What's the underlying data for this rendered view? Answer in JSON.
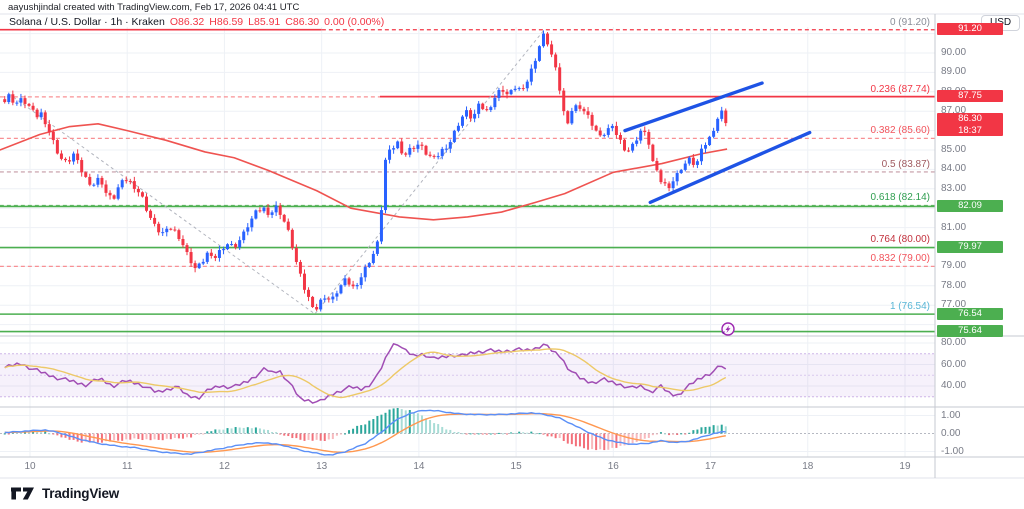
{
  "attribution": "aayushjindal created with TradingView.com, Feb 17, 2026 04:41 UTC",
  "legend": {
    "title": "Solana / U.S. Dollar · 1h · Kraken",
    "open": "O86.32",
    "high": "H86.59",
    "low": "L85.91",
    "close": "C86.30",
    "change": "0.00 (0.00%)"
  },
  "currency_button": "USD",
  "logo_text": "TradingView",
  "axes": {
    "price_ticks": [
      90,
      89,
      88,
      87,
      86,
      85,
      84,
      83,
      82,
      81,
      80,
      79,
      78,
      77
    ],
    "time_ticks": [
      10,
      11,
      12,
      13,
      14,
      15,
      16,
      17,
      18,
      19
    ],
    "rsi_ticks": [
      80,
      60,
      40
    ],
    "macd_ticks": [
      1,
      0,
      -1
    ]
  },
  "badges": [
    {
      "text": "91.20",
      "price": 91.2,
      "bg": "#f23645"
    },
    {
      "text": "87.75",
      "price": 87.75,
      "bg": "#f23645"
    },
    {
      "text": "86.30",
      "sub": "18:37",
      "price": 86.3,
      "bg": "#f23645"
    },
    {
      "text": "82.09",
      "price": 82.09,
      "bg": "#4caf50"
    },
    {
      "text": "79.97",
      "price": 79.97,
      "bg": "#4caf50"
    },
    {
      "text": "76.54",
      "price": 76.54,
      "bg": "#4caf50"
    },
    {
      "text": "75.64",
      "price": 75.64,
      "bg": "#4caf50"
    }
  ],
  "fib_labels": [
    {
      "text": "0 (91.20)",
      "price": 91.2,
      "color": "#8a8e98"
    },
    {
      "text": "0.236 (87.74)",
      "price": 87.74,
      "color": "#f23645"
    },
    {
      "text": "0.382 (85.60)",
      "price": 85.6,
      "color": "#f2545c"
    },
    {
      "text": "0.5 (83.87)",
      "price": 83.87,
      "color": "#a05a60"
    },
    {
      "text": "0.618 (82.14)",
      "price": 82.14,
      "color": "#2f9e4f"
    },
    {
      "text": "0.764 (80.00)",
      "price": 80.0,
      "color": "#c22f3b"
    },
    {
      "text": "0.832 (79.00)",
      "price": 79.0,
      "color": "#f2545c"
    },
    {
      "text": "1 (76.54)",
      "price": 76.54,
      "color": "#58b6d6"
    }
  ],
  "chart_data": {
    "type": "candlestick",
    "title": "Solana / U.S. Dollar 1h (Kraken)",
    "x_range_days": [
      9.74,
      17.17
    ],
    "y_range_price": [
      75.5,
      91.3
    ],
    "candle_colors": {
      "up": "#2962ff",
      "down": "#f23645"
    },
    "price_keypoints": [
      [
        9.74,
        87.5
      ],
      [
        9.78,
        87.8
      ],
      [
        9.85,
        87.4
      ],
      [
        9.92,
        87.6
      ],
      [
        10.0,
        87.2
      ],
      [
        10.06,
        86.7
      ],
      [
        10.12,
        86.9
      ],
      [
        10.18,
        86.2
      ],
      [
        10.25,
        85.3
      ],
      [
        10.31,
        84.6
      ],
      [
        10.38,
        84.3
      ],
      [
        10.45,
        84.8
      ],
      [
        10.52,
        84.0
      ],
      [
        10.58,
        83.5
      ],
      [
        10.65,
        83.2
      ],
      [
        10.72,
        83.6
      ],
      [
        10.78,
        82.8
      ],
      [
        10.85,
        82.4
      ],
      [
        10.92,
        83.2
      ],
      [
        11.0,
        83.5
      ],
      [
        11.08,
        83.1
      ],
      [
        11.15,
        82.6
      ],
      [
        11.22,
        81.7
      ],
      [
        11.3,
        80.9
      ],
      [
        11.38,
        80.7
      ],
      [
        11.46,
        81.0
      ],
      [
        11.54,
        80.5
      ],
      [
        11.62,
        79.6
      ],
      [
        11.7,
        78.9
      ],
      [
        11.76,
        79.1
      ],
      [
        11.82,
        79.7
      ],
      [
        11.88,
        79.3
      ],
      [
        11.95,
        79.8
      ],
      [
        12.02,
        80.2
      ],
      [
        12.1,
        80.0
      ],
      [
        12.18,
        80.5
      ],
      [
        12.25,
        81.2
      ],
      [
        12.33,
        81.8
      ],
      [
        12.4,
        82.0
      ],
      [
        12.47,
        81.7
      ],
      [
        12.54,
        82.1
      ],
      [
        12.6,
        81.5
      ],
      [
        12.67,
        80.6
      ],
      [
        12.74,
        79.2
      ],
      [
        12.81,
        78.0
      ],
      [
        12.88,
        77.2
      ],
      [
        12.95,
        76.8
      ],
      [
        13.02,
        77.5
      ],
      [
        13.1,
        77.2
      ],
      [
        13.18,
        77.9
      ],
      [
        13.25,
        78.3
      ],
      [
        13.32,
        77.9
      ],
      [
        13.4,
        78.4
      ],
      [
        13.48,
        79.2
      ],
      [
        13.55,
        79.8
      ],
      [
        13.6,
        80.6
      ],
      [
        13.64,
        84.3
      ],
      [
        13.7,
        84.9
      ],
      [
        13.78,
        85.4
      ],
      [
        13.85,
        84.7
      ],
      [
        13.92,
        85.1
      ],
      [
        14.0,
        85.3
      ],
      [
        14.08,
        84.8
      ],
      [
        14.16,
        84.5
      ],
      [
        14.24,
        85.0
      ],
      [
        14.32,
        85.4
      ],
      [
        14.4,
        86.3
      ],
      [
        14.48,
        87.0
      ],
      [
        14.55,
        86.6
      ],
      [
        14.62,
        87.3
      ],
      [
        14.7,
        87.0
      ],
      [
        14.78,
        87.7
      ],
      [
        14.85,
        88.2
      ],
      [
        14.92,
        87.8
      ],
      [
        15.0,
        88.3
      ],
      [
        15.07,
        88.0
      ],
      [
        15.14,
        88.9
      ],
      [
        15.21,
        89.9
      ],
      [
        15.26,
        90.7
      ],
      [
        15.29,
        91.0
      ],
      [
        15.35,
        90.2
      ],
      [
        15.42,
        88.9
      ],
      [
        15.48,
        87.3
      ],
      [
        15.52,
        86.0
      ],
      [
        15.58,
        87.2
      ],
      [
        15.65,
        87.3
      ],
      [
        15.72,
        86.9
      ],
      [
        15.8,
        86.2
      ],
      [
        15.87,
        85.6
      ],
      [
        15.94,
        86.1
      ],
      [
        16.0,
        86.1
      ],
      [
        16.07,
        85.5
      ],
      [
        16.14,
        84.9
      ],
      [
        16.21,
        85.3
      ],
      [
        16.28,
        86.0
      ],
      [
        16.35,
        85.7
      ],
      [
        16.42,
        84.1
      ],
      [
        16.49,
        83.4
      ],
      [
        16.56,
        83.1
      ],
      [
        16.63,
        83.5
      ],
      [
        16.7,
        84.1
      ],
      [
        16.78,
        84.5
      ],
      [
        16.85,
        84.2
      ],
      [
        16.92,
        85.1
      ],
      [
        17.0,
        85.7
      ],
      [
        17.06,
        86.5
      ],
      [
        17.11,
        87.0
      ],
      [
        17.15,
        86.6
      ],
      [
        17.17,
        86.3
      ]
    ],
    "ma_red": {
      "color": "#ef5350",
      "keypoints": [
        [
          9.69,
          85.0
        ],
        [
          10.1,
          85.8
        ],
        [
          10.4,
          86.2
        ],
        [
          10.7,
          86.35
        ],
        [
          11.0,
          86.0
        ],
        [
          11.4,
          85.5
        ],
        [
          11.8,
          84.9
        ],
        [
          12.1,
          84.6
        ],
        [
          12.45,
          83.95
        ],
        [
          12.95,
          82.9
        ],
        [
          13.3,
          82.0
        ],
        [
          13.8,
          81.55
        ],
        [
          14.15,
          81.4
        ],
        [
          14.5,
          81.55
        ],
        [
          14.85,
          81.8
        ],
        [
          15.2,
          82.3
        ],
        [
          15.5,
          82.75
        ],
        [
          16.0,
          83.85
        ],
        [
          16.5,
          84.3
        ],
        [
          16.9,
          84.8
        ],
        [
          17.17,
          85.05
        ]
      ]
    },
    "h_lines": [
      {
        "price": 91.2,
        "color": "#f23645",
        "style": "dashed",
        "from": 9.69,
        "to": 19.31,
        "width": 1.2
      },
      {
        "price": 91.2,
        "color": "#f23645",
        "style": "solid",
        "from": 9.69,
        "to": 13.0,
        "width": 1.6
      },
      {
        "price": 87.74,
        "color": "#f89094",
        "style": "dashed",
        "from": 9.69,
        "to": 19.31,
        "width": 1.2
      },
      {
        "price": 87.75,
        "color": "#f23645",
        "style": "solid",
        "from": 13.6,
        "to": 19.31,
        "width": 1.8
      },
      {
        "price": 85.6,
        "color": "#f89094",
        "style": "dashed",
        "from": 9.69,
        "to": 19.31,
        "width": 1.2
      },
      {
        "price": 83.87,
        "color": "#c49aa5",
        "style": "dashed",
        "from": 9.69,
        "to": 19.31,
        "width": 1.2
      },
      {
        "price": 82.14,
        "color": "#66bb6a",
        "style": "dashed",
        "from": 9.69,
        "to": 19.31,
        "width": 1.2
      },
      {
        "price": 82.09,
        "color": "#4caf50",
        "style": "solid",
        "from": 9.69,
        "to": 19.31,
        "width": 1.6
      },
      {
        "price": 79.97,
        "color": "#4caf50",
        "style": "solid",
        "from": 9.69,
        "to": 19.31,
        "width": 1.6
      },
      {
        "price": 79.0,
        "color": "#f89094",
        "style": "dashed",
        "from": 9.69,
        "to": 19.31,
        "width": 1.2
      },
      {
        "price": 76.54,
        "color": "#4caf50",
        "style": "solid",
        "from": 9.69,
        "to": 19.31,
        "width": 1.6
      },
      {
        "price": 75.64,
        "color": "#4caf50",
        "style": "solid",
        "from": 9.69,
        "to": 19.31,
        "width": 1.6
      }
    ],
    "trendlines": [
      {
        "from": [
          16.12,
          86.0
        ],
        "to": [
          17.53,
          88.45
        ],
        "color": "#1e53e5",
        "width": 3.4
      },
      {
        "from": [
          16.38,
          82.3
        ],
        "to": [
          18.02,
          85.9
        ],
        "color": "#1e53e5",
        "width": 3.4
      }
    ],
    "zigzag": {
      "color": "#b2b5be",
      "points": [
        [
          9.78,
          87.9
        ],
        [
          12.93,
          76.55
        ],
        [
          15.29,
          91.2
        ]
      ]
    },
    "rsi": {
      "line_color": "#a04db4",
      "ma_color": "#edc967",
      "band": [
        30,
        70
      ],
      "mid": 50,
      "keypoints": [
        [
          9.74,
          57
        ],
        [
          9.9,
          61
        ],
        [
          10.05,
          55
        ],
        [
          10.26,
          48
        ],
        [
          10.45,
          44
        ],
        [
          10.57,
          41
        ],
        [
          10.72,
          47
        ],
        [
          10.85,
          40
        ],
        [
          11.0,
          45
        ],
        [
          11.15,
          41
        ],
        [
          11.3,
          34
        ],
        [
          11.42,
          37
        ],
        [
          11.5,
          40
        ],
        [
          11.62,
          31
        ],
        [
          11.73,
          29
        ],
        [
          11.85,
          37
        ],
        [
          11.95,
          40
        ],
        [
          12.1,
          39
        ],
        [
          12.25,
          45
        ],
        [
          12.42,
          56
        ],
        [
          12.5,
          52
        ],
        [
          12.56,
          55
        ],
        [
          12.65,
          45
        ],
        [
          12.78,
          28
        ],
        [
          12.9,
          26
        ],
        [
          12.98,
          25
        ],
        [
          13.1,
          32
        ],
        [
          13.2,
          36
        ],
        [
          13.3,
          39
        ],
        [
          13.42,
          37
        ],
        [
          13.5,
          42
        ],
        [
          13.58,
          50
        ],
        [
          13.64,
          62
        ],
        [
          13.72,
          78
        ],
        [
          13.78,
          80
        ],
        [
          13.85,
          73
        ],
        [
          13.95,
          68
        ],
        [
          14.05,
          70
        ],
        [
          14.15,
          65
        ],
        [
          14.25,
          67
        ],
        [
          14.35,
          69
        ],
        [
          14.45,
          68
        ],
        [
          14.55,
          71
        ],
        [
          14.7,
          73
        ],
        [
          14.85,
          72
        ],
        [
          15.0,
          74
        ],
        [
          15.1,
          73
        ],
        [
          15.2,
          75
        ],
        [
          15.28,
          79
        ],
        [
          15.38,
          72
        ],
        [
          15.45,
          68
        ],
        [
          15.55,
          55
        ],
        [
          15.66,
          47
        ],
        [
          15.77,
          43
        ],
        [
          15.9,
          46
        ],
        [
          16.0,
          43
        ],
        [
          16.12,
          40
        ],
        [
          16.2,
          38
        ],
        [
          16.3,
          40
        ],
        [
          16.38,
          34
        ],
        [
          16.48,
          40
        ],
        [
          16.58,
          33
        ],
        [
          16.65,
          31
        ],
        [
          16.75,
          38
        ],
        [
          16.85,
          45
        ],
        [
          16.95,
          50
        ],
        [
          17.02,
          53
        ],
        [
          17.08,
          57
        ],
        [
          17.12,
          59
        ],
        [
          17.15,
          54
        ],
        [
          17.17,
          56
        ]
      ]
    },
    "macd": {
      "macd_color": "#5b8ff7",
      "signal_color": "#ff9850",
      "hist_colors": {
        "pos": "#2aa79b",
        "pos_light": "#a8dcd6",
        "neg": "#f3707a",
        "neg_light": "#f8b9bd"
      },
      "keypoints": [
        [
          9.74,
          0.05
        ],
        [
          10.0,
          0.15
        ],
        [
          10.15,
          0.2
        ],
        [
          10.3,
          0.05
        ],
        [
          10.5,
          -0.3
        ],
        [
          10.7,
          -0.55
        ],
        [
          10.9,
          -0.7
        ],
        [
          11.1,
          -0.8
        ],
        [
          11.3,
          -1.0
        ],
        [
          11.5,
          -1.1
        ],
        [
          11.65,
          -1.15
        ],
        [
          11.8,
          -1.0
        ],
        [
          12.0,
          -0.8
        ],
        [
          12.2,
          -0.6
        ],
        [
          12.4,
          -0.5
        ],
        [
          12.6,
          -0.65
        ],
        [
          12.8,
          -0.95
        ],
        [
          13.0,
          -1.15
        ],
        [
          13.1,
          -1.2
        ],
        [
          13.25,
          -1.0
        ],
        [
          13.45,
          -0.55
        ],
        [
          13.6,
          0.0
        ],
        [
          13.75,
          0.7
        ],
        [
          13.9,
          1.1
        ],
        [
          14.05,
          1.3
        ],
        [
          14.2,
          1.25
        ],
        [
          14.4,
          1.1
        ],
        [
          14.6,
          1.05
        ],
        [
          14.8,
          1.05
        ],
        [
          15.0,
          1.1
        ],
        [
          15.15,
          1.15
        ],
        [
          15.3,
          1.05
        ],
        [
          15.45,
          0.85
        ],
        [
          15.6,
          0.45
        ],
        [
          15.75,
          0.05
        ],
        [
          15.9,
          -0.3
        ],
        [
          16.05,
          -0.5
        ],
        [
          16.2,
          -0.6
        ],
        [
          16.35,
          -0.55
        ],
        [
          16.5,
          -0.4
        ],
        [
          16.62,
          -0.5
        ],
        [
          16.75,
          -0.45
        ],
        [
          16.88,
          -0.25
        ],
        [
          17.0,
          -0.05
        ],
        [
          17.1,
          0.08
        ],
        [
          17.17,
          0.1
        ]
      ]
    }
  }
}
